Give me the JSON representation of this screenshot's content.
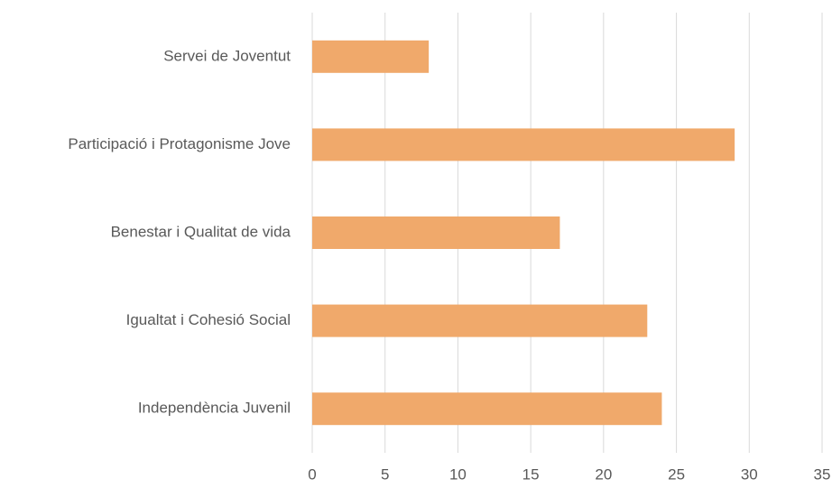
{
  "chart_data": {
    "type": "barh",
    "categories": [
      "Servei de Joventut",
      "Participació i Protagonisme Jove",
      "Benestar i Qualitat de vida",
      "Igualtat i Cohesió Social",
      "Independència Juvenil"
    ],
    "values": [
      8,
      29,
      17,
      23,
      24
    ],
    "color": "#f0a96b",
    "xlim": [
      0,
      35
    ],
    "xticks": [
      0,
      5,
      10,
      15,
      20,
      25,
      30,
      35
    ],
    "grid": true
  }
}
